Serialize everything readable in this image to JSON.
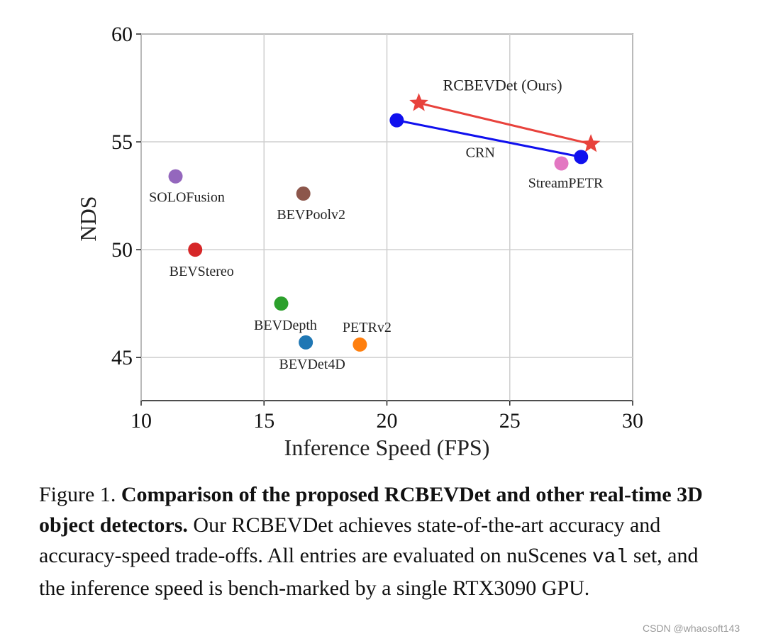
{
  "chart_data": {
    "type": "scatter",
    "xlabel": "Inference Speed (FPS)",
    "ylabel": "NDS",
    "xlim": [
      10,
      30
    ],
    "ylim": [
      43,
      60
    ],
    "xticks": [
      10,
      15,
      20,
      25,
      30
    ],
    "yticks": [
      45,
      50,
      55,
      60
    ],
    "grid": true,
    "points": [
      {
        "name": "SOLOFusion",
        "x": 11.4,
        "y": 53.4,
        "color": "#9467bd"
      },
      {
        "name": "BEVStereo",
        "x": 12.2,
        "y": 50.0,
        "color": "#d62728"
      },
      {
        "name": "BEVPoolv2",
        "x": 16.6,
        "y": 52.6,
        "color": "#8c564b"
      },
      {
        "name": "BEVDepth",
        "x": 15.7,
        "y": 47.5,
        "color": "#2ca02c"
      },
      {
        "name": "BEVDet4D",
        "x": 16.7,
        "y": 45.7,
        "color": "#1f77b4"
      },
      {
        "name": "PETRv2",
        "x": 18.9,
        "y": 45.6,
        "color": "#ff7f0e"
      },
      {
        "name": "StreamPETR",
        "x": 27.1,
        "y": 54.0,
        "color": "#e377c2"
      }
    ],
    "series": [
      {
        "name": "RCBEVDet (Ours)",
        "marker": "star",
        "color": "#e8423c",
        "x": [
          21.3,
          28.3
        ],
        "y": [
          56.8,
          54.9
        ]
      },
      {
        "name": "CRN",
        "marker": "circle",
        "color": "#1010ee",
        "x": [
          20.4,
          27.9
        ],
        "y": [
          56.0,
          54.3
        ]
      }
    ]
  },
  "caption": {
    "prefix": "Figure 1.",
    "bold": "Comparison of the proposed RCBEVDet and other real-time 3D object detectors.",
    "text1": "Our RCBEVDet achieves state-of-the-art accuracy and accuracy-speed trade-offs. All entries are evaluated on nuScenes",
    "code": "val",
    "text2": "set, and the inference speed is bench-marked by a single RTX3090 GPU."
  },
  "watermark": "CSDN @whaosoft143"
}
